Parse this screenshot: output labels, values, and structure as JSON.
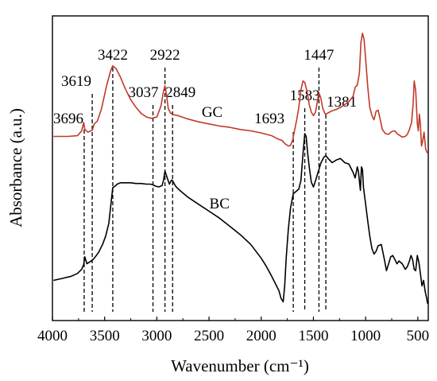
{
  "chart_data": {
    "type": "line",
    "title": "",
    "xlabel": "Wavenumber (cm⁻¹)",
    "ylabel": "Absorbance (a.u.)",
    "xlim": [
      4000,
      400
    ],
    "x_reversed": true,
    "y_ticks_shown": false,
    "grid": false,
    "legend": "none",
    "x_ticks": [
      4000,
      3500,
      3000,
      2500,
      2000,
      1500,
      1000,
      500
    ],
    "x_tick_labels": [
      "4000",
      "3500",
      "3000",
      "2500",
      "2000",
      "1500",
      "1000",
      "500"
    ],
    "peak_lines": [
      {
        "wavenumber": 3696,
        "label": "3696"
      },
      {
        "wavenumber": 3619,
        "label": "3619"
      },
      {
        "wavenumber": 3422,
        "label": "3422"
      },
      {
        "wavenumber": 3037,
        "label": "3037"
      },
      {
        "wavenumber": 2922,
        "label": "2922"
      },
      {
        "wavenumber": 2849,
        "label": "2849"
      },
      {
        "wavenumber": 1693,
        "label": "1693"
      },
      {
        "wavenumber": 1583,
        "label": "1583"
      },
      {
        "wavenumber": 1447,
        "label": "1447"
      },
      {
        "wavenumber": 1381,
        "label": "1381"
      }
    ],
    "series": [
      {
        "name": "GC",
        "color": "#c0392b",
        "x": [
          3990,
          3850,
          3760,
          3720,
          3700,
          3690,
          3660,
          3619,
          3600,
          3570,
          3530,
          3480,
          3440,
          3422,
          3390,
          3350,
          3300,
          3250,
          3200,
          3150,
          3100,
          3050,
          3000,
          2960,
          2935,
          2922,
          2905,
          2890,
          2870,
          2849,
          2830,
          2800,
          2700,
          2600,
          2500,
          2400,
          2300,
          2200,
          2100,
          2000,
          1900,
          1850,
          1800,
          1770,
          1740,
          1720,
          1700,
          1680,
          1660,
          1640,
          1620,
          1600,
          1583,
          1560,
          1540,
          1520,
          1500,
          1480,
          1460,
          1447,
          1430,
          1410,
          1390,
          1381,
          1360,
          1320,
          1280,
          1240,
          1200,
          1160,
          1120,
          1100,
          1080,
          1060,
          1045,
          1030,
          1015,
          1000,
          980,
          960,
          940,
          920,
          900,
          880,
          860,
          840,
          810,
          780,
          750,
          720,
          700,
          680,
          650,
          620,
          600,
          580,
          560,
          545,
          535,
          520,
          505,
          495,
          485,
          475,
          465,
          455,
          440,
          425,
          410
        ],
        "y": [
          6.6,
          6.6,
          6.7,
          7.4,
          8.6,
          7.6,
          7.2,
          7.5,
          8.4,
          8.8,
          10.6,
          14.0,
          16.2,
          16.8,
          16.4,
          15.2,
          13.4,
          11.9,
          10.8,
          9.9,
          9.4,
          9.2,
          9.4,
          11.0,
          13.2,
          13.9,
          12.3,
          10.6,
          10.0,
          9.8,
          9.7,
          9.6,
          9.1,
          8.7,
          8.4,
          8.1,
          7.9,
          7.6,
          7.4,
          7.1,
          6.7,
          6.3,
          6.0,
          5.5,
          5.2,
          5.3,
          6.0,
          7.5,
          9.0,
          10.8,
          13.3,
          14.6,
          14.4,
          13.0,
          11.2,
          10.1,
          9.6,
          10.1,
          11.8,
          12.9,
          12.2,
          10.6,
          9.9,
          9.8,
          10.0,
          10.3,
          10.5,
          10.8,
          11.2,
          11.6,
          12.4,
          13.7,
          14.0,
          15.7,
          20.2,
          21.5,
          20.6,
          17.8,
          13.8,
          10.8,
          9.6,
          9.0,
          10.2,
          10.4,
          9.0,
          7.6,
          7.0,
          6.9,
          7.3,
          7.4,
          7.0,
          6.8,
          6.5,
          6.6,
          6.9,
          7.6,
          8.6,
          11.2,
          14.6,
          13.2,
          8.5,
          7.4,
          9.8,
          8.4,
          5.2,
          5.8,
          7.2,
          4.8,
          4.2
        ],
        "label": "GC",
        "label_at": [
          2470,
          9.4
        ]
      },
      {
        "name": "BC",
        "color": "#000000",
        "x": [
          3990,
          3900,
          3820,
          3760,
          3720,
          3700,
          3690,
          3670,
          3650,
          3620,
          3600,
          3560,
          3520,
          3490,
          3460,
          3440,
          3422,
          3400,
          3380,
          3350,
          3300,
          3250,
          3200,
          3150,
          3100,
          3060,
          3037,
          3010,
          2980,
          2950,
          2935,
          2922,
          2900,
          2880,
          2860,
          2849,
          2820,
          2780,
          2700,
          2600,
          2500,
          2400,
          2300,
          2200,
          2100,
          2000,
          1950,
          1900,
          1860,
          1830,
          1810,
          1790,
          1775,
          1760,
          1740,
          1720,
          1700,
          1693,
          1670,
          1640,
          1620,
          1600,
          1583,
          1570,
          1555,
          1540,
          1520,
          1500,
          1480,
          1460,
          1447,
          1430,
          1400,
          1381,
          1360,
          1320,
          1280,
          1240,
          1200,
          1160,
          1120,
          1100,
          1080,
          1070,
          1060,
          1050,
          1040,
          1030,
          1020,
          1000,
          980,
          960,
          940,
          920,
          900,
          880,
          850,
          820,
          800,
          780,
          760,
          740,
          720,
          700,
          680,
          650,
          620,
          600,
          580,
          565,
          550,
          535,
          520,
          505,
          490,
          475,
          460,
          445,
          430,
          415,
          405
        ],
        "y": [
          -14.2,
          -13.9,
          -13.6,
          -13.2,
          -12.6,
          -11.9,
          -10.8,
          -11.8,
          -11.6,
          -11.3,
          -11.0,
          -10.2,
          -9.0,
          -7.8,
          -6.0,
          -3.2,
          -0.8,
          -0.6,
          -0.3,
          -0.1,
          -0.1,
          -0.1,
          -0.2,
          -0.2,
          -0.3,
          -0.3,
          -0.4,
          -0.6,
          -0.7,
          -0.5,
          0.3,
          1.6,
          0.6,
          -0.3,
          0.3,
          0.2,
          -0.6,
          -1.2,
          -2.2,
          -3.2,
          -4.2,
          -5.2,
          -6.4,
          -7.6,
          -9.0,
          -11.0,
          -12.2,
          -13.6,
          -14.8,
          -15.7,
          -16.8,
          -17.3,
          -15.0,
          -10.8,
          -6.8,
          -3.8,
          -2.2,
          -1.7,
          -1.4,
          -1.0,
          0.2,
          4.0,
          7.0,
          6.6,
          4.2,
          2.2,
          0.0,
          -0.7,
          0.2,
          1.2,
          1.8,
          2.7,
          3.6,
          3.8,
          3.4,
          2.8,
          3.2,
          3.4,
          2.8,
          2.6,
          1.4,
          0.6,
          2.2,
          1.6,
          0.2,
          -1.2,
          2.2,
          1.8,
          -0.8,
          -3.2,
          -5.6,
          -7.8,
          -9.6,
          -10.4,
          -10.0,
          -9.2,
          -9.0,
          -11.2,
          -12.8,
          -11.8,
          -10.8,
          -10.6,
          -11.2,
          -11.8,
          -11.4,
          -11.8,
          -12.6,
          -12.2,
          -11.4,
          -10.6,
          -11.2,
          -12.6,
          -12.8,
          -10.6,
          -11.6,
          -13.2,
          -15.0,
          -14.2,
          -15.8,
          -16.8,
          -17.6
        ],
        "label": "BC",
        "label_at": [
          2400,
          -3.8
        ]
      }
    ]
  }
}
